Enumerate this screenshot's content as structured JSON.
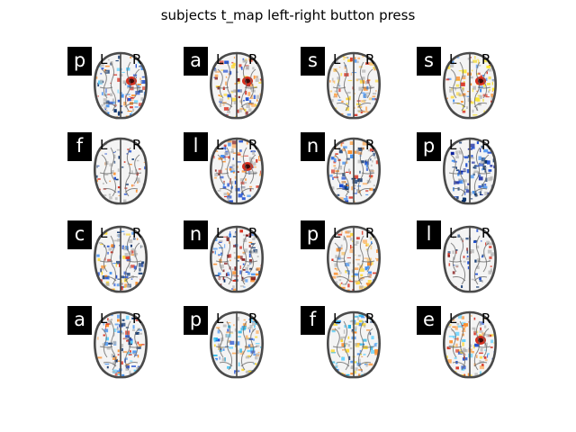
{
  "figure": {
    "title": "subjects t_map left-right button press"
  },
  "colors": {
    "background": "#ffffff",
    "badge_bg": "#000000",
    "badge_text": "#ffffff",
    "outline": "#4a4a4a",
    "cold_map": [
      "#08306b",
      "#1f4fd1",
      "#3f8ef0",
      "#5fd0ff"
    ],
    "hot_map": [
      "#7f1010",
      "#d7301f",
      "#fc8d29",
      "#fdd835"
    ]
  },
  "panels": [
    {
      "letter": "p",
      "left": "L",
      "right": "R",
      "palette": "blue-mix",
      "hot_spot": true
    },
    {
      "letter": "a",
      "left": "L",
      "right": "R",
      "palette": "orange",
      "hot_spot": true
    },
    {
      "letter": "s",
      "left": "L",
      "right": "R",
      "palette": "orange-light",
      "hot_spot": false
    },
    {
      "letter": "s",
      "left": "L",
      "right": "R",
      "palette": "yellow",
      "hot_spot": true
    },
    {
      "letter": "f",
      "left": "L",
      "right": "R",
      "palette": "sparse-mix",
      "hot_spot": false
    },
    {
      "letter": "l",
      "left": "L",
      "right": "R",
      "palette": "orange-red",
      "hot_spot": true
    },
    {
      "letter": "n",
      "left": "L",
      "right": "R",
      "palette": "blue-orange",
      "hot_spot": false
    },
    {
      "letter": "p",
      "left": "L",
      "right": "R",
      "palette": "deep-blue",
      "hot_spot": false
    },
    {
      "letter": "c",
      "left": "L",
      "right": "R",
      "palette": "blue-band",
      "hot_spot": false
    },
    {
      "letter": "n",
      "left": "L",
      "right": "R",
      "palette": "red-blue",
      "hot_spot": false
    },
    {
      "letter": "p",
      "left": "L",
      "right": "R",
      "palette": "orange-light",
      "hot_spot": false
    },
    {
      "letter": "l",
      "left": "L",
      "right": "R",
      "palette": "dark-speckle",
      "hot_spot": false
    },
    {
      "letter": "a",
      "left": "L",
      "right": "R",
      "palette": "blue-mix",
      "hot_spot": false
    },
    {
      "letter": "p",
      "left": "L",
      "right": "R",
      "palette": "cyan",
      "hot_spot": false
    },
    {
      "letter": "f",
      "left": "L",
      "right": "R",
      "palette": "cyan-yellow",
      "hot_spot": false
    },
    {
      "letter": "e",
      "left": "L",
      "right": "R",
      "palette": "orange-blue",
      "hot_spot": true
    }
  ]
}
